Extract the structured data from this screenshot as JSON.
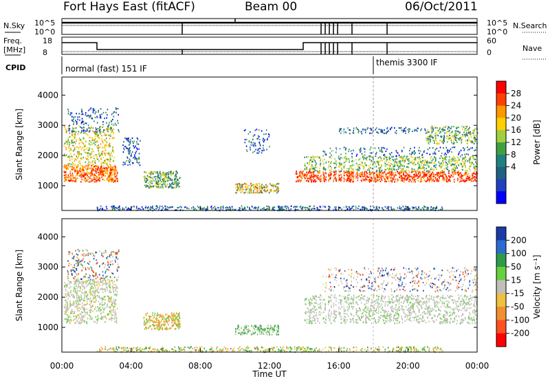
{
  "header": {
    "site": "Fort Hays East (fitACF)",
    "beam": "Beam 00",
    "date": "06/Oct/2011"
  },
  "status_panels": {
    "nsky_label": "N.Sky",
    "nsearch_label": "N.Search",
    "noise_ticks": [
      "10^5",
      "10^0"
    ],
    "freq_label_line1": "Freq.",
    "freq_label_line2": "[MHz]",
    "freq_ticks": [
      "18",
      "8"
    ],
    "nave_label": "Nave",
    "nave_ticks": [
      "60",
      "0"
    ],
    "cpid_label": "CPID",
    "cpid_segments": [
      {
        "label": "normal (fast) 151 IF",
        "start_hour": 0.0
      },
      {
        "label": "themis 3300 IF",
        "start_hour": 18.0
      }
    ]
  },
  "power_scale": {
    "title": "Power [dB]",
    "ticks": [
      "28",
      "24",
      "20",
      "16",
      "12",
      "8",
      "4"
    ],
    "colors": [
      "#ff0000",
      "#ff4000",
      "#ff9800",
      "#ffd000",
      "#a0d040",
      "#40a040",
      "#208080",
      "#206080",
      "#2040c0",
      "#0000ff"
    ]
  },
  "velocity_scale": {
    "title": "Velocity [m s⁻¹]",
    "ticks": [
      "200",
      "100",
      "50",
      "15",
      "-15",
      "-50",
      "-100",
      "-200"
    ],
    "colors": [
      "#1a3aa8",
      "#2e6bd0",
      "#2e9a4a",
      "#66d040",
      "#c0c0b8",
      "#f0c040",
      "#f09030",
      "#ff5020",
      "#ff0000"
    ]
  },
  "chart_data": [
    {
      "type": "heatmap",
      "title": "Power",
      "xlabel": "",
      "ylabel": "Slant Range [km]",
      "x_ticks": [
        "00:00",
        "04:00",
        "08:00",
        "12:00",
        "16:00",
        "20:00",
        "00:00"
      ],
      "y_ticks": [
        "1000",
        "2000",
        "3000",
        "4000"
      ],
      "xlim_hours": [
        0,
        24
      ],
      "ylim_km": [
        180,
        4600
      ],
      "features": [
        {
          "t0": 0.0,
          "t1": 3.2,
          "r0": 1150,
          "r1": 3600,
          "level": "high"
        },
        {
          "t0": 4.8,
          "t1": 6.8,
          "r0": 900,
          "r1": 1500,
          "level": "medium"
        },
        {
          "t0": 10.0,
          "t1": 12.5,
          "r0": 800,
          "r1": 1100,
          "level": "medium"
        },
        {
          "t0": 14.0,
          "t1": 24.0,
          "r0": 1100,
          "r1": 2000,
          "level": "high"
        },
        {
          "t0": 15.0,
          "t1": 24.0,
          "r0": 2400,
          "r1": 3000,
          "level": "medium"
        }
      ]
    },
    {
      "type": "heatmap",
      "title": "Velocity",
      "xlabel": "Time UT",
      "ylabel": "Slant Range [km]",
      "x_ticks": [
        "00:00",
        "04:00",
        "08:00",
        "12:00",
        "16:00",
        "20:00",
        "00:00"
      ],
      "y_ticks": [
        "1000",
        "2000",
        "3000",
        "4000"
      ],
      "xlim_hours": [
        0,
        24
      ],
      "ylim_km": [
        180,
        4600
      ]
    }
  ]
}
